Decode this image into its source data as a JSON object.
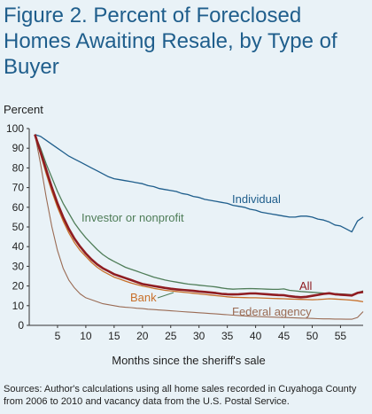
{
  "title": "Figure 2. Percent of Foreclosed Homes Awaiting Resale, by Type of Buyer",
  "source": "Sources: Author's calculations using all home sales recorded in Cuyahoga County from 2006 to 2010 and vacancy data from the U.S. Postal Service.",
  "chart_data": {
    "type": "line",
    "title": "Figure 2. Percent of Foreclosed Homes Awaiting Resale, by Type of Buyer",
    "xlabel": "Months since the sheriff's sale",
    "ylabel": "Percent",
    "xlim": [
      0,
      59
    ],
    "ylim": [
      0,
      100
    ],
    "xticks": [
      5,
      10,
      15,
      20,
      25,
      30,
      35,
      40,
      45,
      50,
      55
    ],
    "yticks": [
      0,
      10,
      20,
      30,
      40,
      50,
      60,
      70,
      80,
      90,
      100
    ],
    "grid": false,
    "legend": "inline labels",
    "series": [
      {
        "name": "Individual",
        "color": "#1f5e8c",
        "x": [
          1,
          2,
          3,
          4,
          5,
          6,
          7,
          8,
          9,
          10,
          11,
          12,
          13,
          14,
          15,
          16,
          17,
          18,
          19,
          20,
          21,
          22,
          23,
          24,
          25,
          26,
          27,
          28,
          29,
          30,
          31,
          32,
          33,
          34,
          35,
          36,
          37,
          38,
          39,
          40,
          41,
          42,
          43,
          44,
          45,
          46,
          47,
          48,
          49,
          50,
          51,
          52,
          53,
          54,
          55,
          56,
          57,
          58,
          59
        ],
        "values": [
          97,
          96,
          94,
          92,
          90,
          88,
          86,
          84.5,
          83,
          81.5,
          80,
          78.5,
          77,
          75.5,
          74.5,
          74,
          73.5,
          73,
          72.5,
          72,
          71,
          70.5,
          69.5,
          69,
          68.5,
          68,
          67,
          66.5,
          65.5,
          65,
          64,
          63.5,
          63,
          62.5,
          62,
          61,
          60.5,
          60,
          59,
          58.5,
          57.5,
          57,
          56.5,
          56,
          55.5,
          55,
          55,
          55.5,
          55.5,
          55,
          54,
          53.5,
          52.5,
          51,
          50.5,
          49,
          47.5,
          53,
          55
        ]
      },
      {
        "name": "Investor or nonprofit",
        "color": "#4f7d58",
        "x": [
          1,
          2,
          3,
          4,
          5,
          6,
          7,
          8,
          9,
          10,
          11,
          12,
          13,
          14,
          15,
          16,
          17,
          18,
          19,
          20,
          21,
          22,
          23,
          24,
          25,
          26,
          27,
          28,
          29,
          30,
          31,
          32,
          33,
          34,
          35,
          36,
          37,
          38,
          39,
          40,
          41,
          42,
          43,
          44,
          45,
          46,
          47,
          48,
          49,
          50,
          51,
          52,
          53,
          54,
          55,
          56,
          57,
          58,
          59
        ],
        "values": [
          97,
          90,
          82,
          75,
          68,
          62,
          57,
          52,
          48,
          44.5,
          41.5,
          38.5,
          36,
          34,
          32.5,
          31,
          29.5,
          28.5,
          27.5,
          26.5,
          25.5,
          24.5,
          23.8,
          23,
          22.5,
          22,
          21.5,
          21,
          20.7,
          20.4,
          20.1,
          19.8,
          19.5,
          19,
          18.6,
          18.4,
          18.5,
          18.6,
          18.7,
          18.6,
          18.5,
          18.4,
          18.3,
          18.3,
          18.5,
          17.8,
          17.5,
          17.2,
          17,
          16.8,
          16.6,
          16.4,
          16.2,
          16.1,
          16,
          15.8,
          15.6,
          16.5,
          17.5
        ]
      },
      {
        "name": "All",
        "color": "#8f1c21",
        "x": [
          1,
          2,
          3,
          4,
          5,
          6,
          7,
          8,
          9,
          10,
          11,
          12,
          13,
          14,
          15,
          16,
          17,
          18,
          19,
          20,
          21,
          22,
          23,
          24,
          25,
          26,
          27,
          28,
          29,
          30,
          31,
          32,
          33,
          34,
          35,
          36,
          37,
          38,
          39,
          40,
          41,
          42,
          43,
          44,
          45,
          46,
          47,
          48,
          49,
          50,
          51,
          52,
          53,
          54,
          55,
          56,
          57,
          58,
          59
        ],
        "values": [
          97,
          88,
          79,
          70,
          62,
          55,
          49,
          44,
          40,
          36.5,
          33.5,
          31,
          29,
          27.5,
          26,
          25,
          24,
          23,
          22,
          21,
          20.5,
          20,
          19.5,
          19,
          18.6,
          18.3,
          18,
          17.8,
          17.5,
          17.2,
          17,
          16.7,
          16.4,
          16,
          15.8,
          15.7,
          15.8,
          16,
          16.2,
          16.2,
          16,
          15.8,
          15.6,
          15.4,
          15.3,
          14.8,
          14.5,
          14.3,
          14.5,
          15,
          15.5,
          16,
          16.3,
          15.8,
          15.6,
          15.4,
          15.2,
          16.5,
          17
        ]
      },
      {
        "name": "Bank",
        "color": "#c8702a",
        "x": [
          1,
          2,
          3,
          4,
          5,
          6,
          7,
          8,
          9,
          10,
          11,
          12,
          13,
          14,
          15,
          16,
          17,
          18,
          19,
          20,
          21,
          22,
          23,
          24,
          25,
          26,
          27,
          28,
          29,
          30,
          31,
          32,
          33,
          34,
          35,
          36,
          37,
          38,
          39,
          40,
          41,
          42,
          43,
          44,
          45,
          46,
          47,
          48,
          49,
          50,
          51,
          52,
          53,
          54,
          55,
          56,
          57,
          58,
          59
        ],
        "values": [
          97,
          87,
          77,
          68,
          60,
          53,
          47,
          42,
          38,
          35,
          32,
          29.5,
          27.5,
          26,
          24.5,
          23.5,
          22.5,
          21.5,
          20.7,
          20,
          19.4,
          18.8,
          18.3,
          17.8,
          17.5,
          17.2,
          16.9,
          16.6,
          16.3,
          16,
          15.7,
          15.4,
          15.1,
          14.8,
          14.5,
          14.3,
          14.2,
          14.1,
          14,
          14,
          13.9,
          13.8,
          13.7,
          13.6,
          13.5,
          13.4,
          13.3,
          13.2,
          13.1,
          13,
          13.1,
          13.3,
          13.5,
          13.4,
          13.2,
          13,
          12.8,
          12.5,
          12
        ]
      },
      {
        "name": "Federal agency",
        "color": "#9a6b54",
        "x": [
          1,
          2,
          3,
          4,
          5,
          6,
          7,
          8,
          9,
          10,
          11,
          12,
          13,
          14,
          15,
          16,
          17,
          18,
          19,
          20,
          21,
          22,
          23,
          24,
          25,
          26,
          27,
          28,
          29,
          30,
          31,
          32,
          33,
          34,
          35,
          36,
          37,
          38,
          39,
          40,
          41,
          42,
          43,
          44,
          45,
          46,
          47,
          48,
          49,
          50,
          51,
          52,
          53,
          54,
          55,
          56,
          57,
          58,
          59
        ],
        "values": [
          97,
          82,
          65,
          50,
          38,
          29,
          23,
          19,
          16,
          14,
          13,
          12,
          11,
          10.5,
          10,
          9.5,
          9.2,
          9,
          8.7,
          8.5,
          8.2,
          8,
          7.8,
          7.6,
          7.4,
          7.2,
          7,
          6.8,
          6.6,
          6.4,
          6.2,
          6,
          5.8,
          5.6,
          5.4,
          5.2,
          5,
          4.8,
          4.6,
          4.5,
          4.4,
          4.3,
          4.2,
          4.1,
          4,
          3.9,
          3.8,
          3.7,
          3.6,
          3.5,
          3.4,
          3.3,
          3.3,
          3.2,
          3.2,
          3.1,
          3.1,
          4,
          7
        ]
      }
    ],
    "labels": [
      {
        "text": "Individual",
        "series": "Individual"
      },
      {
        "text": "Investor or nonprofit",
        "series": "Investor or nonprofit"
      },
      {
        "text": "All",
        "series": "All"
      },
      {
        "text": "Bank",
        "series": "Bank"
      },
      {
        "text": "Federal agency",
        "series": "Federal agency"
      }
    ]
  }
}
